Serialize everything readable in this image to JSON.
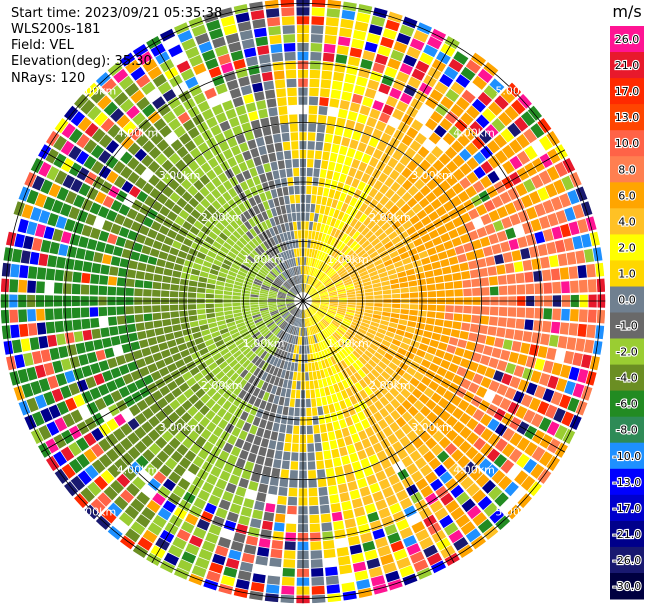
{
  "header": {
    "start_time": "Start time: 2023/09/21 05:35:38",
    "instrument": "WLS200s-181",
    "field": "Field: VEL",
    "elevation": "Elevation(deg): 35.30",
    "nrays": "NRays: 120"
  },
  "colorbar": {
    "unit": "m/s",
    "labels": [
      "26.0",
      "21.0",
      "17.0",
      "13.0",
      "10.0",
      "8.0",
      "6.0",
      "4.0",
      "2.0",
      "1.0",
      "0.0",
      "-1.0",
      "-2.0",
      "-4.0",
      "-6.0",
      "-8.0",
      "-10.0",
      "-13.0",
      "-17.0",
      "-21.0",
      "-26.0",
      "-30.0"
    ],
    "colors": [
      "#ff1493",
      "#e8192c",
      "#ff2a00",
      "#ff4500",
      "#ff6347",
      "#ff7f50",
      "#ffa500",
      "#ffc125",
      "#ffff00",
      "#ffd700",
      "#708090",
      "#696969",
      "#9acd32",
      "#6b8e23",
      "#228b22",
      "#2e8b57",
      "#1e90ff",
      "#0000ff",
      "#0000cd",
      "#00008b",
      "#191970",
      "#000040"
    ]
  },
  "chart_data": {
    "type": "heatmap",
    "subtype": "ppi-polar",
    "field": "VEL",
    "units": "m/s",
    "rays": 120,
    "range_rings_km": [
      1,
      2,
      3,
      4,
      5
    ],
    "ring_labels": [
      "1.00km",
      "2.00km",
      "3.00km",
      "4.00km",
      "5.00km"
    ],
    "value_range": [
      -30,
      26
    ],
    "pattern": {
      "positive_side": "east",
      "negative_side": "west",
      "description_sector_deg": {
        "east_positive_center": 90,
        "west_negative_center": 270
      }
    },
    "spoke_angles_deg": [
      0,
      30,
      60,
      90,
      120,
      150,
      180,
      210,
      240,
      270,
      300,
      330
    ]
  }
}
